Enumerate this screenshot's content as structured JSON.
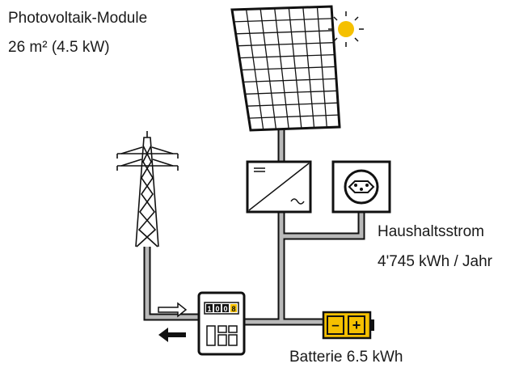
{
  "pv": {
    "title": "Photovoltaik-Module",
    "size": "26 m² (4.5 kW)"
  },
  "household": {
    "title": "Haushaltsstrom",
    "consumption": "4'745 kWh / Jahr"
  },
  "battery": {
    "label": "Batterie 6.5 kWh",
    "minus": "–",
    "plus": "+"
  },
  "meter_digits": [
    "1",
    "0",
    "0",
    "8"
  ]
}
